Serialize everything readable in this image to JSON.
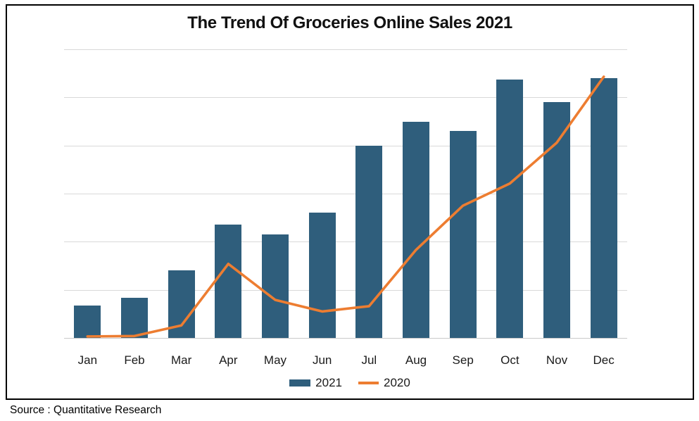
{
  "title": "The Trend Of Groceries Online Sales 2021",
  "source_note": "Source : Quantitative Research",
  "legend": {
    "items": [
      {
        "label": "2021",
        "marker": "square",
        "color": "#2F5E7C"
      },
      {
        "label": "2020",
        "marker": "line",
        "color": "#ED7D31"
      }
    ]
  },
  "colors": {
    "bar_2021": "#2F5E7C",
    "line_2020": "#ED7D31",
    "gridline": "#D9D9D9",
    "axis_line": "#C9C9C9",
    "border": "#000000",
    "background": "#FFFFFF"
  },
  "chart_data": {
    "type": "bar",
    "subtype": "bar-and-line-combo",
    "title": "The Trend Of Groceries Online Sales 2021",
    "categories": [
      "Jan",
      "Feb",
      "Mar",
      "Apr",
      "May",
      "Jun",
      "Jul",
      "Aug",
      "Sep",
      "Oct",
      "Nov",
      "Dec"
    ],
    "series": [
      {
        "name": "2021",
        "type": "bar",
        "color": "#2F5E7C",
        "values": [
          6.8,
          8.4,
          14.1,
          23.6,
          21.5,
          26,
          40,
          45,
          43,
          53.7,
          49,
          54
        ]
      },
      {
        "name": "2020",
        "type": "line",
        "color": "#ED7D31",
        "values": [
          0.3,
          0.4,
          2.6,
          15.4,
          7.9,
          5.5,
          6.6,
          18.3,
          27.5,
          32.1,
          40.6,
          54.3
        ]
      }
    ],
    "xlabel": "",
    "ylabel": "",
    "ylim": [
      0,
      60
    ],
    "grid_step": 10,
    "grid": true,
    "y_axis_labels": false,
    "legend_position": "bottom-center",
    "note": "No numeric y-axis labels are shown in the chart; values are relative units where one gridline interval = 10."
  }
}
